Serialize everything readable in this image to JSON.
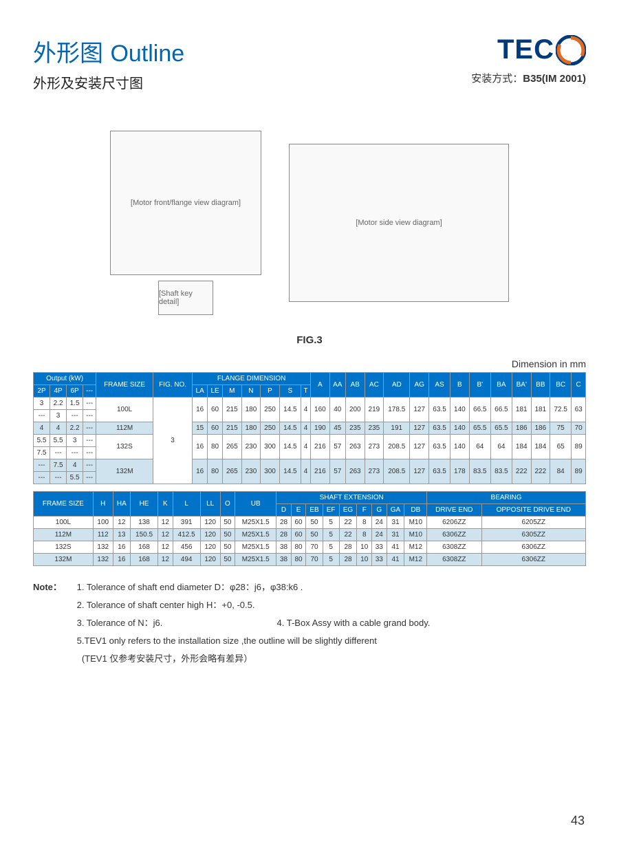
{
  "header": {
    "title_cn": "外形图",
    "title_en": "Outline",
    "subtitle": "外形及安装尺寸图",
    "logo_text": "TEC",
    "mount_label_prefix": "安装方式：",
    "mount_label_value": "B35(IM 2001)"
  },
  "figure": {
    "caption": "FIG.3",
    "dim_label": "Dimension in mm",
    "front_view": "[Motor front/flange view diagram]",
    "side_view": "[Motor side view diagram]",
    "shaft_view": "[Shaft key detail]"
  },
  "colors": {
    "brand_blue": "#0066b3",
    "logo_blue": "#003a7d",
    "logo_orange": "#e46a1f",
    "table_header": "#0073c8",
    "row_shade": "#cfe3ef",
    "border": "#999999",
    "text": "#333333"
  },
  "table1": {
    "group_headers": {
      "output": "Output (kW)",
      "frame": "FRAME SIZE",
      "fig": "FIG. NO.",
      "flange": "FLANGE DIMENSION"
    },
    "sub_headers": [
      "2P",
      "4P",
      "6P",
      "---",
      "LA",
      "LE",
      "M",
      "N",
      "P",
      "S",
      "T",
      "A",
      "AA",
      "AB",
      "AC",
      "AD",
      "AG",
      "AS",
      "B",
      "B'",
      "BA",
      "BA'",
      "BB",
      "BC",
      "C"
    ],
    "rows": [
      {
        "shade": false,
        "cells": [
          "3",
          "2.2",
          "1.5",
          "---",
          "100L",
          "",
          "16",
          "60",
          "215",
          "180",
          "250",
          "14.5",
          "4",
          "160",
          "40",
          "200",
          "219",
          "178.5",
          "127",
          "63.5",
          "140",
          "66.5",
          "66.5",
          "181",
          "181",
          "72.5",
          "63"
        ],
        "rowspan_frame": 2,
        "first": true
      },
      {
        "shade": false,
        "cells": [
          "---",
          "3",
          "---",
          "---"
        ]
      },
      {
        "shade": true,
        "cells": [
          "4",
          "4",
          "2.2",
          "---",
          "112M",
          "",
          "15",
          "60",
          "215",
          "180",
          "250",
          "14.5",
          "4",
          "190",
          "45",
          "235",
          "235",
          "191",
          "127",
          "63.5",
          "140",
          "65.5",
          "65.5",
          "186",
          "186",
          "75",
          "70"
        ]
      },
      {
        "shade": false,
        "cells": [
          "5.5",
          "5.5",
          "3",
          "---",
          "132S",
          "3",
          "16",
          "80",
          "265",
          "230",
          "300",
          "14.5",
          "4",
          "216",
          "57",
          "263",
          "273",
          "208.5",
          "127",
          "63.5",
          "140",
          "64",
          "64",
          "184",
          "184",
          "65",
          "89"
        ],
        "rowspan_frame": 2,
        "first": true
      },
      {
        "shade": false,
        "cells": [
          "7.5",
          "---",
          "---",
          "---"
        ]
      },
      {
        "shade": true,
        "cells": [
          "---",
          "7.5",
          "4",
          "---",
          "132M",
          "",
          "16",
          "80",
          "265",
          "230",
          "300",
          "14.5",
          "4",
          "216",
          "57",
          "263",
          "273",
          "208.5",
          "127",
          "63.5",
          "178",
          "83.5",
          "83.5",
          "222",
          "222",
          "84",
          "89"
        ],
        "rowspan_frame": 2,
        "first": true
      },
      {
        "shade": true,
        "cells": [
          "---",
          "---",
          "5.5",
          "---"
        ]
      }
    ]
  },
  "table2": {
    "group_headers": {
      "frame": "FRAME SIZE",
      "shaft": "SHAFT EXTENSION",
      "bearing": "BEARING"
    },
    "sub_headers": [
      "H",
      "HA",
      "HE",
      "K",
      "L",
      "LL",
      "O",
      "UB",
      "D",
      "E",
      "EB",
      "EF",
      "EG",
      "F",
      "G",
      "GA",
      "DB",
      "DRIVE END",
      "OPPOSITE DRIVE END"
    ],
    "rows": [
      {
        "shade": false,
        "cells": [
          "100L",
          "100",
          "12",
          "138",
          "12",
          "391",
          "120",
          "50",
          "M25X1.5",
          "28",
          "60",
          "50",
          "5",
          "22",
          "8",
          "24",
          "31",
          "M10",
          "6206ZZ",
          "6205ZZ"
        ]
      },
      {
        "shade": true,
        "cells": [
          "112M",
          "112",
          "13",
          "150.5",
          "12",
          "412.5",
          "120",
          "50",
          "M25X1.5",
          "28",
          "60",
          "50",
          "5",
          "22",
          "8",
          "24",
          "31",
          "M10",
          "6306ZZ",
          "6305ZZ"
        ]
      },
      {
        "shade": false,
        "cells": [
          "132S",
          "132",
          "16",
          "168",
          "12",
          "456",
          "120",
          "50",
          "M25X1.5",
          "38",
          "80",
          "70",
          "5",
          "28",
          "10",
          "33",
          "41",
          "M12",
          "6308ZZ",
          "6306ZZ"
        ]
      },
      {
        "shade": true,
        "cells": [
          "132M",
          "132",
          "16",
          "168",
          "12",
          "494",
          "120",
          "50",
          "M25X1.5",
          "38",
          "80",
          "70",
          "5",
          "28",
          "10",
          "33",
          "41",
          "M12",
          "6308ZZ",
          "6306ZZ"
        ]
      }
    ]
  },
  "notes": {
    "label": "Note：",
    "items": [
      "1. Tolerance of shaft end diameter D：φ28：j6，φ38:k6 .",
      "2. Tolerance of shaft center high H：+0, -0.5.",
      "3. Tolerance of N：j6.                                              4. T-Box Assy with a cable grand body.",
      "5.TEV1 only refers to the installation size ,the outline will be slightly different",
      "  (TEV1 仅参考安装尺寸，外形会略有差异）"
    ]
  },
  "page_number": "43"
}
